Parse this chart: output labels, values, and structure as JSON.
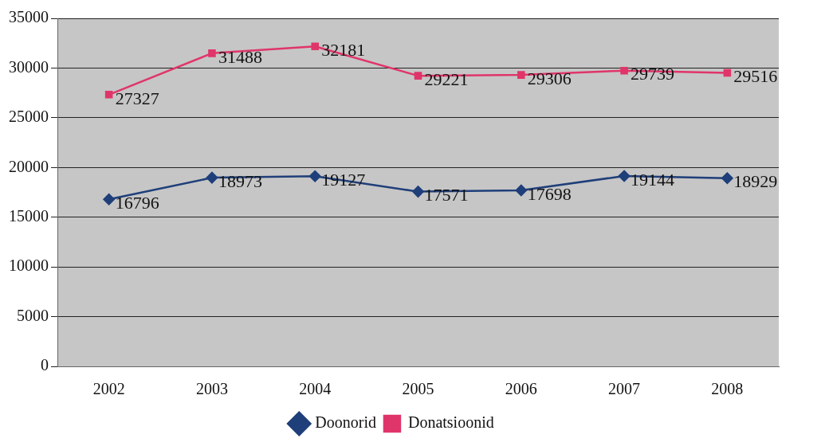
{
  "chart_data": {
    "type": "line",
    "categories": [
      "2002",
      "2003",
      "2004",
      "2005",
      "2006",
      "2007",
      "2008"
    ],
    "series": [
      {
        "name": "Doonorid",
        "color": "#1f3f7a",
        "marker": "diamond",
        "values": [
          16796,
          18973,
          19127,
          17571,
          17698,
          19144,
          18929
        ]
      },
      {
        "name": "Donatsioonid",
        "color": "#e0356a",
        "marker": "square",
        "values": [
          27327,
          31488,
          32181,
          29221,
          29306,
          29739,
          29516
        ]
      }
    ],
    "ylim": [
      0,
      35000
    ],
    "yticks": [
      0,
      5000,
      10000,
      15000,
      20000,
      25000,
      30000,
      35000
    ],
    "grid": "y",
    "legend": "bottom",
    "data_labels": true,
    "line_style": "solid"
  }
}
